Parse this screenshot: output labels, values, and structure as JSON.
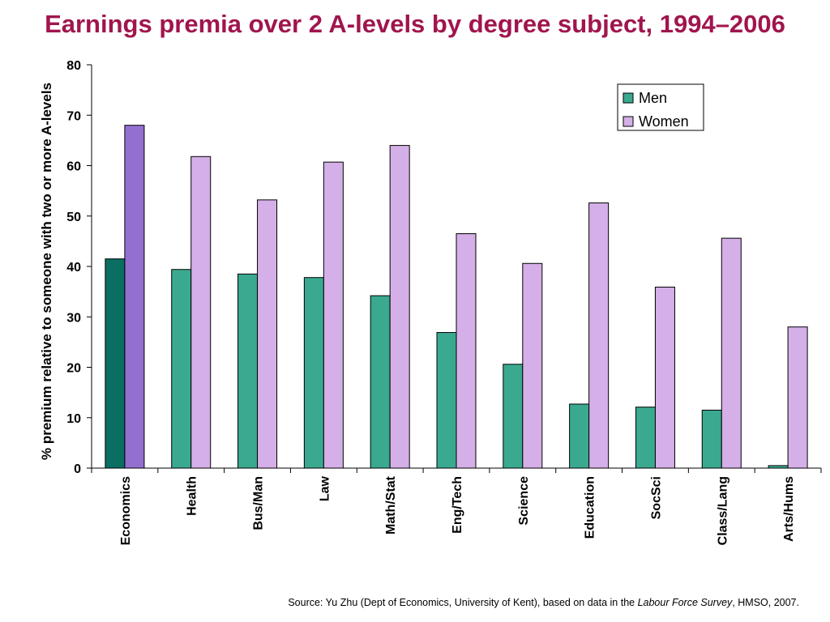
{
  "title": "Earnings premia over 2 A-levels by degree subject, 1994–2006",
  "source": {
    "prefix": "Source: Yu Zhu (Dept of Economics, University of Kent), based on data in the ",
    "italic": "Labour Force Survey",
    "suffix": ", HMSO, 2007."
  },
  "colors": {
    "title": "#a0154e",
    "men": "#3aa98f",
    "women": "#d4afe8",
    "men_highlight": "#0b6e63",
    "women_highlight": "#9370d0"
  },
  "chart_data": {
    "type": "bar",
    "title": "Earnings premia over 2 A-levels by degree subject, 1994–2006",
    "xlabel": "",
    "ylabel": "% premium relative to someone with two or more A-levels",
    "ylim": [
      0,
      80
    ],
    "yticks": [
      0,
      10,
      20,
      30,
      40,
      50,
      60,
      70,
      80
    ],
    "grid": false,
    "legend_position": "top-right",
    "highlighted_category": "Economics",
    "categories": [
      "Economics",
      "Health",
      "Bus/Man",
      "Law",
      "Math/Stat",
      "Eng/Tech",
      "Science",
      "Education",
      "SocSci",
      "Class/Lang",
      "Arts/Hums"
    ],
    "series": [
      {
        "name": "Men",
        "values": [
          41.5,
          39.4,
          38.5,
          37.8,
          34.2,
          26.9,
          20.6,
          12.7,
          12.1,
          11.5,
          0.5
        ]
      },
      {
        "name": "Women",
        "values": [
          68.0,
          61.8,
          53.2,
          60.7,
          64.0,
          46.5,
          40.6,
          52.6,
          35.9,
          45.6,
          28.0
        ]
      }
    ]
  }
}
